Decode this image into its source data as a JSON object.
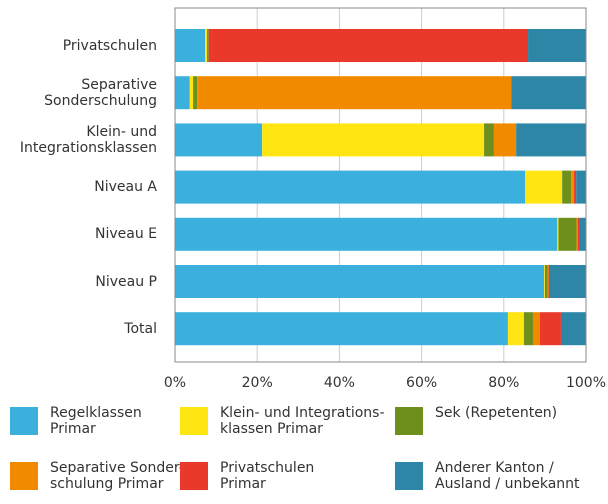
{
  "chart_data": {
    "type": "stacked_barh",
    "categories": [
      "Privatschulen",
      "Separative\nSonderschulung",
      "Klein- und\nIntegrationsklassen",
      "Niveau A",
      "Niveau E",
      "Niveau P",
      "Total"
    ],
    "series": [
      {
        "name": "Regelklassen\nPrimar",
        "color": "#3bb0dc",
        "values": [
          7.3,
          3.6,
          21.2,
          85.2,
          93,
          89.8,
          81
        ]
      },
      {
        "name": "Klein- und Integrations-\nklassen Primar",
        "color": "#ffe512",
        "values": [
          0.5,
          0.8,
          54,
          9,
          0.3,
          0.2,
          3.9
        ]
      },
      {
        "name": "Sek (Repetenten)",
        "color": "#6f8f1d",
        "values": [
          0.4,
          1,
          2.4,
          2.2,
          4.4,
          0.7,
          2.2
        ]
      },
      {
        "name": "Separative Sonder-\nschulung Primar",
        "color": "#f28a00",
        "values": [
          0,
          76.4,
          5.4,
          0.7,
          0.3,
          0.2,
          1.7
        ]
      },
      {
        "name": "Privatschulen\nPrimar",
        "color": "#e8392b",
        "values": [
          77.7,
          0,
          0,
          0.5,
          0.3,
          0.1,
          5.1
        ]
      },
      {
        "name": "Anderer Kanton /\nAusland / unbekannt",
        "color": "#2e86a6",
        "values": [
          14.1,
          18.2,
          17,
          2.4,
          1.7,
          9,
          6.1
        ]
      }
    ],
    "xlim": [
      0,
      100
    ],
    "xticks": [
      {
        "value": 0,
        "label": "0%"
      },
      {
        "value": 20,
        "label": "20%"
      },
      {
        "value": 40,
        "label": "40%"
      },
      {
        "value": 60,
        "label": "60%"
      },
      {
        "value": 80,
        "label": "80%"
      },
      {
        "value": 100,
        "label": "100%"
      }
    ],
    "grid": true
  }
}
